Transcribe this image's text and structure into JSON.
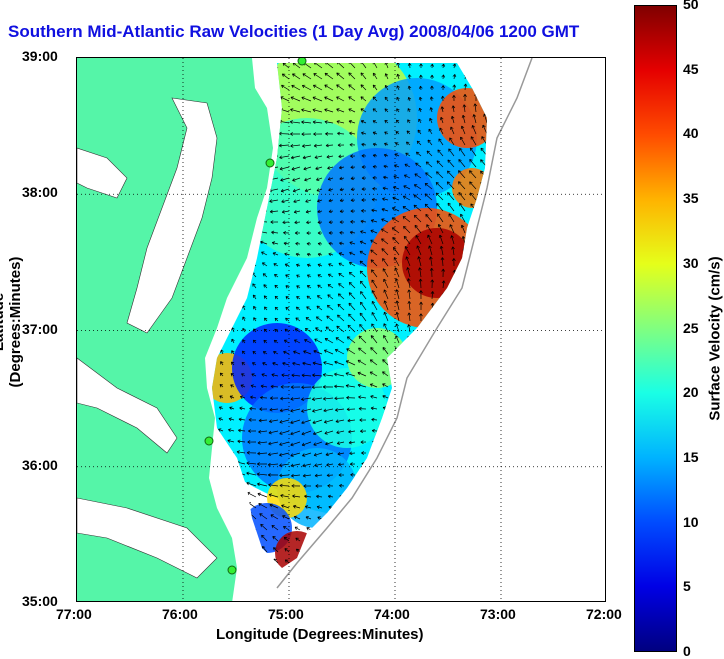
{
  "title": "Southern Mid-Atlantic Raw Velocities (1 Day Avg) 2008/04/06 1200 GMT",
  "x_axis": {
    "label": "Longitude (Degrees:Minutes)",
    "ticks": [
      "77:00",
      "76:00",
      "75:00",
      "74:00",
      "73:00",
      "72:00"
    ],
    "range": [
      -77,
      -72
    ]
  },
  "y_axis": {
    "label": "Latitude (Degrees:Minutes)",
    "ticks": [
      "39:00",
      "38:00",
      "37:00",
      "36:00",
      "35:00"
    ],
    "range": [
      35,
      39
    ]
  },
  "colorbar": {
    "label": "Surface Velocity (cm/s)",
    "ticks": [
      "50",
      "45",
      "40",
      "35",
      "30",
      "25",
      "20",
      "15",
      "10",
      "5",
      "0"
    ],
    "range": [
      0,
      50
    ],
    "colormap": "jet"
  },
  "colors": {
    "land": "#55f5a8",
    "water": "#ffffff",
    "title": "#1010e0"
  },
  "grid": "dotted",
  "legend_marks": [
    "green-station-dots",
    "velocity-arrows"
  ]
}
